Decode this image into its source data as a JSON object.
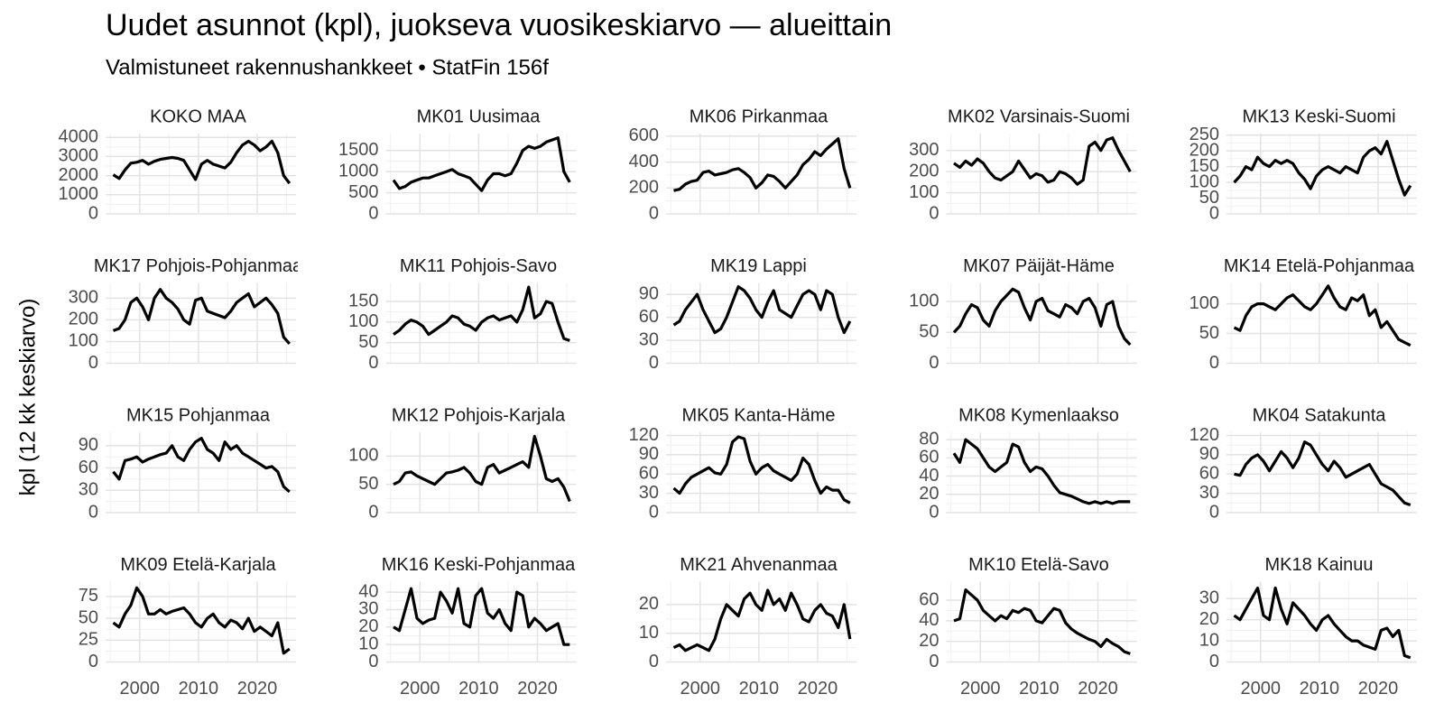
{
  "chart_data": {
    "type": "line",
    "title": "Uudet asunnot (kpl), juokseva vuosikeskiarvo — alueittain",
    "subtitle": "Valmistuneet rakennushankkeet • StatFin 156f",
    "y_label": "kpl (12 kk keskiarvo)",
    "color": "#000000",
    "grid": true,
    "x": [
      1995.5,
      1996.5,
      1997.5,
      1998.5,
      1999.5,
      2000.5,
      2001.5,
      2002.5,
      2003.5,
      2004.5,
      2005.5,
      2006.5,
      2007.5,
      2008.5,
      2009.5,
      2010.5,
      2011.5,
      2012.5,
      2013.5,
      2014.5,
      2015.5,
      2016.5,
      2017.5,
      2018.5,
      2019.5,
      2020.5,
      2021.5,
      2022.5,
      2023.5,
      2024.5,
      2025.5
    ],
    "xlim": [
      1994.2,
      2026.6
    ],
    "xticks": [
      2000,
      2010,
      2020
    ],
    "panels": [
      {
        "title": "KOKO MAA",
        "ylim": [
          0,
          4200
        ],
        "yticks": [
          0,
          1000,
          2000,
          3000,
          4000
        ],
        "values": [
          2050,
          1850,
          2300,
          2650,
          2700,
          2800,
          2600,
          2750,
          2850,
          2900,
          2950,
          2900,
          2800,
          2300,
          1800,
          2600,
          2800,
          2600,
          2500,
          2400,
          2700,
          3200,
          3600,
          3800,
          3600,
          3300,
          3500,
          3800,
          3200,
          2000,
          1600
        ]
      },
      {
        "title": "MK01 Uusimaa",
        "ylim": [
          0,
          1900
        ],
        "yticks": [
          0,
          500,
          1000,
          1500
        ],
        "values": [
          800,
          600,
          650,
          750,
          800,
          850,
          850,
          900,
          950,
          1000,
          1050,
          950,
          900,
          850,
          700,
          550,
          800,
          950,
          950,
          900,
          950,
          1200,
          1500,
          1600,
          1550,
          1600,
          1700,
          1750,
          1800,
          1000,
          750
        ]
      },
      {
        "title": "MK06 Pirkanmaa",
        "ylim": [
          0,
          620
        ],
        "yticks": [
          0,
          200,
          400,
          600
        ],
        "values": [
          180,
          190,
          230,
          250,
          260,
          320,
          330,
          300,
          310,
          320,
          340,
          350,
          320,
          280,
          200,
          240,
          300,
          290,
          250,
          200,
          250,
          300,
          380,
          420,
          480,
          450,
          500,
          540,
          580,
          350,
          200
        ]
      },
      {
        "title": "MK02 Varsinais-Suomi",
        "ylim": [
          0,
          380
        ],
        "yticks": [
          0,
          100,
          200,
          300
        ],
        "values": [
          240,
          220,
          250,
          230,
          260,
          240,
          200,
          170,
          160,
          180,
          200,
          250,
          210,
          170,
          190,
          180,
          150,
          160,
          200,
          190,
          170,
          140,
          160,
          320,
          340,
          300,
          350,
          360,
          300,
          250,
          200
        ]
      },
      {
        "title": "MK13 Keski-Suomi",
        "ylim": [
          0,
          255
        ],
        "yticks": [
          0,
          50,
          100,
          150,
          200,
          250
        ],
        "values": [
          100,
          120,
          150,
          140,
          180,
          160,
          150,
          170,
          160,
          170,
          160,
          130,
          110,
          80,
          120,
          140,
          150,
          140,
          130,
          150,
          140,
          130,
          180,
          200,
          210,
          190,
          230,
          170,
          110,
          60,
          90
        ]
      },
      {
        "title": "MK17 Pohjois-Pohjanmaa",
        "ylim": [
          0,
          370
        ],
        "yticks": [
          0,
          100,
          200,
          300
        ],
        "values": [
          150,
          160,
          200,
          280,
          300,
          260,
          200,
          300,
          340,
          300,
          280,
          250,
          200,
          180,
          290,
          300,
          240,
          230,
          220,
          210,
          240,
          280,
          300,
          320,
          260,
          280,
          300,
          270,
          230,
          120,
          90
        ]
      },
      {
        "title": "MK11 Pohjois-Savo",
        "ylim": [
          0,
          195
        ],
        "yticks": [
          0,
          50,
          100,
          150
        ],
        "values": [
          70,
          80,
          95,
          105,
          100,
          90,
          70,
          80,
          90,
          100,
          115,
          110,
          95,
          90,
          80,
          100,
          110,
          115,
          105,
          110,
          115,
          100,
          130,
          185,
          110,
          120,
          150,
          145,
          100,
          60,
          55
        ]
      },
      {
        "title": "MK19 Lappi",
        "ylim": [
          0,
          105
        ],
        "yticks": [
          0,
          30,
          60,
          90
        ],
        "values": [
          50,
          55,
          70,
          80,
          90,
          70,
          55,
          40,
          45,
          60,
          80,
          100,
          95,
          85,
          70,
          60,
          80,
          95,
          70,
          65,
          60,
          75,
          90,
          95,
          90,
          70,
          95,
          90,
          60,
          40,
          55
        ]
      },
      {
        "title": "MK07 Päijät-Häme",
        "ylim": [
          0,
          130
        ],
        "yticks": [
          0,
          50,
          100
        ],
        "values": [
          50,
          60,
          80,
          95,
          90,
          70,
          60,
          85,
          100,
          110,
          120,
          115,
          90,
          70,
          100,
          105,
          85,
          80,
          75,
          95,
          90,
          80,
          100,
          105,
          90,
          60,
          95,
          100,
          60,
          40,
          30
        ]
      },
      {
        "title": "MK14 Etelä-Pohjanmaa",
        "ylim": [
          0,
          135
        ],
        "yticks": [
          0,
          50,
          100
        ],
        "values": [
          60,
          55,
          80,
          95,
          100,
          100,
          95,
          90,
          100,
          110,
          115,
          105,
          95,
          90,
          100,
          115,
          130,
          110,
          95,
          90,
          110,
          105,
          115,
          80,
          90,
          60,
          70,
          55,
          40,
          35,
          30
        ]
      },
      {
        "title": "MK15 Pohjanmaa",
        "ylim": [
          0,
          108
        ],
        "yticks": [
          0,
          30,
          60,
          90
        ],
        "values": [
          55,
          45,
          70,
          72,
          75,
          68,
          72,
          75,
          78,
          80,
          90,
          75,
          70,
          85,
          95,
          100,
          85,
          80,
          70,
          95,
          85,
          90,
          80,
          75,
          70,
          65,
          60,
          62,
          55,
          35,
          28
        ]
      },
      {
        "title": "MK12 Pohjois-Karjala",
        "ylim": [
          0,
          142
        ],
        "yticks": [
          0,
          50,
          100
        ],
        "values": [
          50,
          55,
          70,
          72,
          65,
          60,
          55,
          50,
          60,
          70,
          72,
          75,
          80,
          70,
          55,
          50,
          80,
          85,
          70,
          75,
          80,
          85,
          90,
          80,
          135,
          100,
          60,
          55,
          60,
          45,
          20
        ]
      },
      {
        "title": "MK05 Kanta-Häme",
        "ylim": [
          0,
          125
        ],
        "yticks": [
          0,
          30,
          60,
          90,
          120
        ],
        "values": [
          38,
          30,
          45,
          55,
          60,
          65,
          70,
          62,
          60,
          75,
          110,
          118,
          115,
          80,
          60,
          70,
          75,
          65,
          60,
          55,
          50,
          60,
          85,
          75,
          50,
          30,
          40,
          35,
          35,
          20,
          15
        ]
      },
      {
        "title": "MK08 Kymenlaakso",
        "ylim": [
          0,
          88
        ],
        "yticks": [
          0,
          20,
          40,
          60,
          80
        ],
        "values": [
          65,
          55,
          80,
          75,
          70,
          60,
          50,
          45,
          50,
          55,
          75,
          72,
          55,
          45,
          50,
          48,
          40,
          30,
          22,
          20,
          18,
          15,
          12,
          10,
          12,
          10,
          12,
          10,
          12,
          12,
          12
        ]
      },
      {
        "title": "MK04 Satakunta",
        "ylim": [
          0,
          125
        ],
        "yticks": [
          0,
          30,
          60,
          90,
          120
        ],
        "values": [
          60,
          58,
          75,
          85,
          90,
          80,
          65,
          80,
          95,
          85,
          70,
          85,
          110,
          105,
          90,
          75,
          65,
          80,
          70,
          55,
          60,
          65,
          70,
          75,
          60,
          45,
          40,
          35,
          25,
          15,
          12
        ]
      },
      {
        "title": "MK09 Etelä-Karjala",
        "ylim": [
          0,
          92
        ],
        "yticks": [
          0,
          25,
          50,
          75
        ],
        "values": [
          45,
          40,
          55,
          65,
          85,
          75,
          55,
          55,
          60,
          55,
          58,
          60,
          62,
          55,
          45,
          40,
          50,
          55,
          45,
          40,
          48,
          45,
          38,
          50,
          35,
          40,
          35,
          30,
          45,
          10,
          15
        ]
      },
      {
        "title": "MK16 Keski-Pohjanmaa",
        "ylim": [
          0,
          46
        ],
        "yticks": [
          0,
          10,
          20,
          30,
          40
        ],
        "values": [
          20,
          18,
          30,
          42,
          25,
          22,
          24,
          25,
          40,
          35,
          28,
          42,
          22,
          20,
          38,
          42,
          28,
          25,
          30,
          22,
          18,
          40,
          38,
          20,
          25,
          22,
          18,
          20,
          22,
          10,
          10
        ]
      },
      {
        "title": "MK21 Ahvenanmaa",
        "ylim": [
          0,
          28
        ],
        "yticks": [
          0,
          10,
          20
        ],
        "values": [
          5,
          6,
          4,
          5,
          6,
          5,
          4,
          8,
          15,
          20,
          18,
          16,
          22,
          24,
          20,
          18,
          25,
          20,
          22,
          18,
          24,
          20,
          15,
          14,
          18,
          20,
          17,
          16,
          12,
          20,
          8
        ]
      },
      {
        "title": "MK10 Etelä-Savo",
        "ylim": [
          0,
          78
        ],
        "yticks": [
          0,
          20,
          40,
          60
        ],
        "values": [
          40,
          42,
          70,
          65,
          60,
          50,
          45,
          40,
          45,
          42,
          50,
          48,
          52,
          50,
          40,
          38,
          45,
          52,
          50,
          38,
          32,
          28,
          25,
          22,
          20,
          15,
          22,
          18,
          15,
          10,
          8
        ]
      },
      {
        "title": "MK18 Kainuu",
        "ylim": [
          0,
          38
        ],
        "yticks": [
          0,
          10,
          20,
          30
        ],
        "values": [
          22,
          20,
          25,
          30,
          35,
          22,
          20,
          35,
          25,
          18,
          28,
          25,
          22,
          18,
          15,
          20,
          22,
          18,
          15,
          12,
          10,
          10,
          8,
          7,
          6,
          15,
          16,
          12,
          15,
          3,
          2
        ]
      }
    ]
  }
}
